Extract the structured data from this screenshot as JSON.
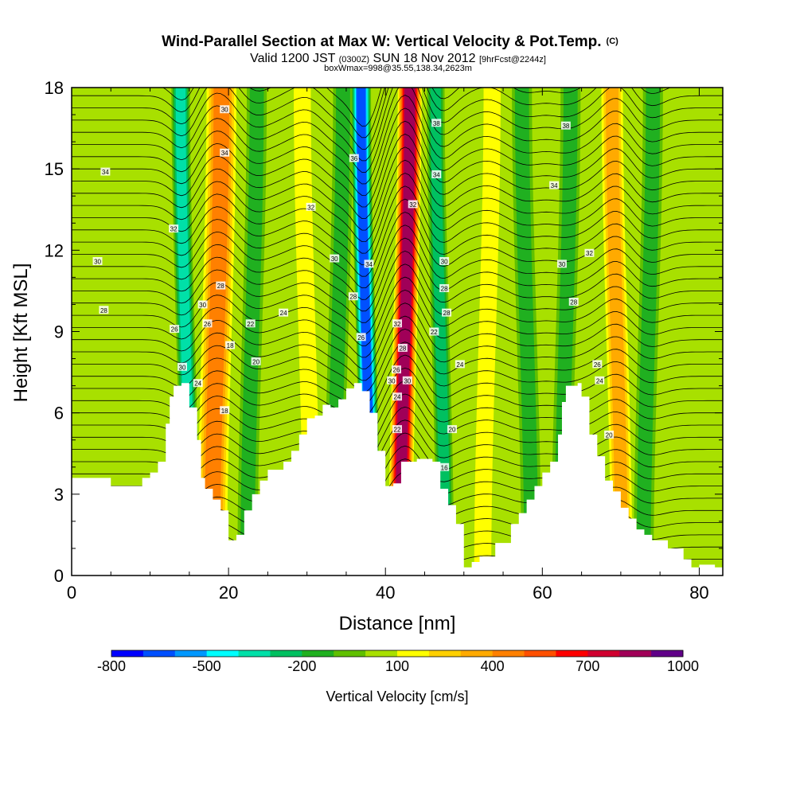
{
  "chart_data": {
    "type": "heatmap",
    "title": "Wind-Parallel Section at Max W: Vertical Velocity & Pot.Temp.",
    "title_mark": "(C)",
    "subtitle_parts": [
      "Valid 1200 JST ",
      "(0300Z)",
      " SUN 18 Nov 2012 ",
      "[9hrFcst@2244z]"
    ],
    "subtitle2": "boxWmax=998@35.55,138.34,2623m",
    "xlabel": "Distance [nm]",
    "ylabel": "Height [Kft MSL]",
    "xlim": [
      0,
      83
    ],
    "ylim": [
      0,
      18
    ],
    "x_ticks": [
      0,
      20,
      40,
      60,
      80
    ],
    "y_ticks": [
      0,
      3,
      6,
      9,
      12,
      15,
      18
    ],
    "colorbar": {
      "label": "Vertical Velocity [cm/s]",
      "min": -800,
      "max": 1000,
      "step": 100,
      "tick_values": [
        -800,
        -500,
        -200,
        100,
        400,
        700,
        1000
      ],
      "colors": [
        "#0000ff",
        "#0050ff",
        "#0098ff",
        "#00ffff",
        "#00e0a8",
        "#00c060",
        "#20b020",
        "#60c000",
        "#a8e000",
        "#ffff00",
        "#ffd000",
        "#ffaa00",
        "#ff8000",
        "#ff5000",
        "#ff0000",
        "#d00030",
        "#a00058",
        "#600088"
      ]
    },
    "velocity_features": [
      {
        "x": 18.5,
        "width": 4,
        "value": 500
      },
      {
        "x": 14.5,
        "width": 2.5,
        "value": -400
      },
      {
        "x": 23,
        "width": 3,
        "value": -200
      },
      {
        "x": 30,
        "width": 3,
        "value": 200
      },
      {
        "x": 34,
        "width": 3,
        "value": -200
      },
      {
        "x": 37.5,
        "width": 2.5,
        "value": -700
      },
      {
        "x": 42.5,
        "width": 3,
        "value": 900
      },
      {
        "x": 47,
        "width": 2.5,
        "value": -300
      },
      {
        "x": 53,
        "width": 3,
        "value": 150
      },
      {
        "x": 58,
        "width": 3,
        "value": -150
      },
      {
        "x": 63,
        "width": 3,
        "value": -150
      },
      {
        "x": 69.5,
        "width": 3,
        "value": 400
      },
      {
        "x": 73.5,
        "width": 3,
        "value": -200
      }
    ],
    "terrain": [
      [
        0,
        3.6
      ],
      [
        4,
        3.6
      ],
      [
        5,
        3.3
      ],
      [
        8,
        3.3
      ],
      [
        9,
        3.6
      ],
      [
        10,
        3.8
      ],
      [
        11,
        4.2
      ],
      [
        12,
        5.6
      ],
      [
        12.5,
        6.6
      ],
      [
        13,
        7.0
      ],
      [
        14,
        7.1
      ],
      [
        15,
        6.2
      ],
      [
        16,
        5.0
      ],
      [
        16.5,
        3.6
      ],
      [
        17,
        3.2
      ],
      [
        18,
        2.8
      ],
      [
        19,
        2.4
      ],
      [
        20,
        1.3
      ],
      [
        21,
        1.5
      ],
      [
        22,
        2.4
      ],
      [
        23,
        3.0
      ],
      [
        24,
        3.5
      ],
      [
        25,
        3.9
      ],
      [
        27,
        4.2
      ],
      [
        28,
        4.6
      ],
      [
        29,
        5.2
      ],
      [
        30,
        5.8
      ],
      [
        31,
        5.9
      ],
      [
        32,
        6.3
      ],
      [
        33,
        6.2
      ],
      [
        34,
        6.5
      ],
      [
        35,
        6.9
      ],
      [
        36,
        7.1
      ],
      [
        37,
        6.8
      ],
      [
        38,
        6.0
      ],
      [
        39,
        4.6
      ],
      [
        40,
        3.3
      ],
      [
        41,
        3.4
      ],
      [
        42,
        4.2
      ],
      [
        44,
        4.3
      ],
      [
        46,
        4.2
      ],
      [
        47,
        3.2
      ],
      [
        48,
        2.6
      ],
      [
        49,
        1.9
      ],
      [
        50,
        0.3
      ],
      [
        51,
        0.5
      ],
      [
        52,
        0.7
      ],
      [
        54,
        1.2
      ],
      [
        56,
        1.9
      ],
      [
        57,
        2.3
      ],
      [
        58,
        2.8
      ],
      [
        59,
        3.3
      ],
      [
        60,
        3.8
      ],
      [
        61,
        4.2
      ],
      [
        62,
        5.2
      ],
      [
        62.5,
        6.4
      ],
      [
        63,
        7.0
      ],
      [
        64.5,
        7.1
      ],
      [
        65,
        6.6
      ],
      [
        66,
        5.2
      ],
      [
        67,
        4.4
      ],
      [
        68,
        3.5
      ],
      [
        69,
        3.1
      ],
      [
        70,
        2.5
      ],
      [
        71,
        2.1
      ],
      [
        72,
        1.7
      ],
      [
        73,
        1.5
      ],
      [
        74,
        1.3
      ],
      [
        76,
        1.0
      ],
      [
        78,
        0.6
      ],
      [
        79,
        0.3
      ],
      [
        80,
        0.4
      ],
      [
        81,
        0.4
      ],
      [
        82,
        0.3
      ],
      [
        83,
        0.3
      ]
    ],
    "contour_labels": [
      {
        "text": "30",
        "x": 19.5,
        "y": 17.2
      },
      {
        "text": "34",
        "x": 19.5,
        "y": 15.6
      },
      {
        "text": "34",
        "x": 4.3,
        "y": 14.9
      },
      {
        "text": "36",
        "x": 36,
        "y": 15.4
      },
      {
        "text": "38",
        "x": 46.5,
        "y": 16.7
      },
      {
        "text": "38",
        "x": 63,
        "y": 16.6
      },
      {
        "text": "34",
        "x": 46.5,
        "y": 14.8
      },
      {
        "text": "34",
        "x": 61.5,
        "y": 14.4
      },
      {
        "text": "32",
        "x": 13,
        "y": 12.8
      },
      {
        "text": "32",
        "x": 30.5,
        "y": 13.6
      },
      {
        "text": "32",
        "x": 43.5,
        "y": 13.7
      },
      {
        "text": "32",
        "x": 66,
        "y": 11.9
      },
      {
        "text": "30",
        "x": 3.3,
        "y": 11.6
      },
      {
        "text": "30",
        "x": 33.5,
        "y": 11.7
      },
      {
        "text": "34",
        "x": 37.9,
        "y": 11.5
      },
      {
        "text": "30",
        "x": 47.5,
        "y": 11.6
      },
      {
        "text": "30",
        "x": 62.5,
        "y": 11.5
      },
      {
        "text": "28",
        "x": 19,
        "y": 10.7
      },
      {
        "text": "28",
        "x": 4.1,
        "y": 9.8
      },
      {
        "text": "28",
        "x": 47.5,
        "y": 10.6
      },
      {
        "text": "28",
        "x": 64,
        "y": 10.1
      },
      {
        "text": "28",
        "x": 35.9,
        "y": 10.3
      },
      {
        "text": "30",
        "x": 16.7,
        "y": 10.0
      },
      {
        "text": "26",
        "x": 17.3,
        "y": 9.3
      },
      {
        "text": "22",
        "x": 22.8,
        "y": 9.3
      },
      {
        "text": "24",
        "x": 27,
        "y": 9.7
      },
      {
        "text": "28",
        "x": 47.8,
        "y": 9.7
      },
      {
        "text": "26",
        "x": 13.1,
        "y": 9.1
      },
      {
        "text": "32",
        "x": 41.5,
        "y": 9.3
      },
      {
        "text": "22",
        "x": 46.2,
        "y": 9.0
      },
      {
        "text": "26",
        "x": 36.9,
        "y": 8.8
      },
      {
        "text": "18",
        "x": 20.2,
        "y": 8.5
      },
      {
        "text": "28",
        "x": 42.2,
        "y": 8.4
      },
      {
        "text": "20",
        "x": 23.5,
        "y": 7.9
      },
      {
        "text": "24",
        "x": 49.5,
        "y": 7.8
      },
      {
        "text": "26",
        "x": 67,
        "y": 7.8
      },
      {
        "text": "30",
        "x": 14.1,
        "y": 7.7
      },
      {
        "text": "26",
        "x": 41.4,
        "y": 7.6
      },
      {
        "text": "30",
        "x": 40.8,
        "y": 7.2
      },
      {
        "text": "30",
        "x": 42.8,
        "y": 7.2
      },
      {
        "text": "24",
        "x": 16.1,
        "y": 7.1
      },
      {
        "text": "24",
        "x": 67.3,
        "y": 7.2
      },
      {
        "text": "24",
        "x": 41.5,
        "y": 6.6
      },
      {
        "text": "18",
        "x": 19.5,
        "y": 6.1
      },
      {
        "text": "22",
        "x": 41.5,
        "y": 5.4
      },
      {
        "text": "20",
        "x": 48.5,
        "y": 5.4
      },
      {
        "text": "20",
        "x": 68.5,
        "y": 5.2
      },
      {
        "text": "16",
        "x": 47.5,
        "y": 4.0
      }
    ]
  }
}
